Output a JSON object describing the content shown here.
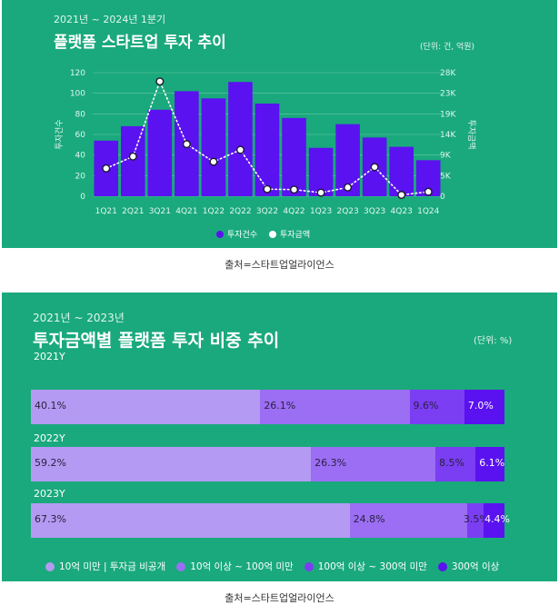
{
  "chart1": {
    "subtitle": "2021년 ~ 2024년 1분기",
    "title": "플랫폼 스타트업 투자 추이",
    "unit": "(단위: 건, 억원)",
    "source": "출처=스타트업얼라이언스"
  },
  "chart2": {
    "subtitle": "2021년 ~ 2023년",
    "title": "투자금액별 플랫폼 투자 비중 추이",
    "unit": "(단위: %)",
    "source": "출처=스타트업얼라이언스"
  },
  "colors": {
    "background": "#1aa97c",
    "bar": "#5a12f0",
    "line": "#ffffff",
    "seg1": "#b49af2",
    "seg2": "#9b6ef4",
    "seg3": "#7b3ef2",
    "seg4": "#5a12f0"
  },
  "chart_data": [
    {
      "type": "bar",
      "categories": [
        "1Q21",
        "2Q21",
        "3Q21",
        "4Q21",
        "1Q22",
        "2Q22",
        "3Q22",
        "4Q22",
        "1Q23",
        "2Q23",
        "3Q23",
        "4Q23",
        "1Q24"
      ],
      "series": [
        {
          "name": "투자건수",
          "type": "bar",
          "axis": "left",
          "values": [
            54,
            68,
            84,
            102,
            95,
            111,
            90,
            76,
            47,
            70,
            57,
            48,
            35
          ]
        },
        {
          "name": "투자금액",
          "type": "line",
          "axis": "right",
          "values": [
            6300,
            9000,
            26000,
            11800,
            7800,
            10500,
            1600,
            1500,
            800,
            2000,
            6600,
            300,
            1000
          ]
        }
      ],
      "ylabel": "투자건수",
      "y2label": "투자금액",
      "yticks": [
        "0",
        "20",
        "40",
        "60",
        "80",
        "100",
        "120"
      ],
      "y2ticks": [
        "0",
        "5K",
        "9K",
        "14K",
        "19K",
        "23K",
        "28K"
      ],
      "ylim": [
        0,
        120
      ],
      "y2lim": [
        0,
        28000
      ],
      "legend_position": "bottom-center",
      "grid": true
    },
    {
      "type": "bar",
      "orientation": "horizontal-stacked",
      "categories": [
        "2021Y",
        "2022Y",
        "2023Y"
      ],
      "series": [
        {
          "name": "10억 미만 | 투자금 비공개",
          "values": [
            40.1,
            59.2,
            67.3
          ],
          "labels": [
            "40.1%",
            "59.2%",
            "67.3%"
          ]
        },
        {
          "name": "10억 이상 ~ 100억 미만",
          "values": [
            26.1,
            26.3,
            24.8
          ],
          "labels": [
            "26.1%",
            "26.3%",
            "24.8%"
          ]
        },
        {
          "name": "100억 이상 ~ 300억 미만",
          "values": [
            9.6,
            8.5,
            3.5
          ],
          "labels": [
            "9.6%",
            "8.5%",
            "3.5%"
          ]
        },
        {
          "name": "300억 이상",
          "values": [
            7.0,
            6.1,
            4.4
          ],
          "labels": [
            "7.0%",
            "6.1%",
            "4.4%"
          ]
        }
      ],
      "legend_position": "bottom"
    }
  ]
}
